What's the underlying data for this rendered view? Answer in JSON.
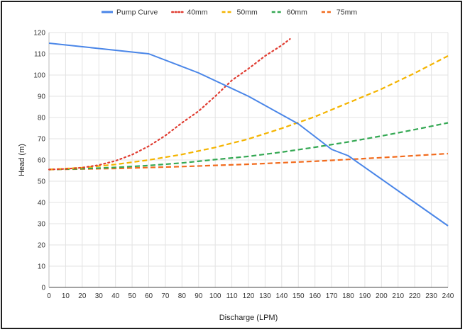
{
  "chart_data": {
    "type": "line",
    "title": "",
    "xlabel": "Discharge (LPM)",
    "ylabel": "Head (m)",
    "xlim": [
      0,
      240
    ],
    "ylim": [
      0,
      120
    ],
    "x_ticks": [
      0,
      10,
      20,
      30,
      40,
      50,
      60,
      70,
      80,
      90,
      100,
      110,
      120,
      130,
      140,
      150,
      160,
      170,
      180,
      190,
      200,
      210,
      220,
      230,
      240
    ],
    "y_ticks": [
      0,
      10,
      20,
      30,
      40,
      50,
      60,
      70,
      80,
      90,
      100,
      110,
      120
    ],
    "grid": true,
    "legend_position": "top",
    "series": [
      {
        "name": "Pump Curve",
        "color": "#4a86e8",
        "style": "solid",
        "points": [
          [
            0,
            115
          ],
          [
            30,
            112.5
          ],
          [
            60,
            110
          ],
          [
            90,
            101
          ],
          [
            120,
            90
          ],
          [
            150,
            77
          ],
          [
            170,
            65
          ],
          [
            180,
            62
          ],
          [
            200,
            51
          ],
          [
            220,
            40
          ],
          [
            240,
            29
          ]
        ]
      },
      {
        "name": "40mm",
        "color": "#e03c31",
        "style": "dotted",
        "points": [
          [
            0,
            55.5
          ],
          [
            10,
            55.8
          ],
          [
            20,
            56.4
          ],
          [
            30,
            57.6
          ],
          [
            40,
            59.6
          ],
          [
            50,
            62.5
          ],
          [
            60,
            66.5
          ],
          [
            70,
            71.5
          ],
          [
            80,
            77.5
          ],
          [
            90,
            83
          ],
          [
            100,
            90
          ],
          [
            110,
            97.5
          ],
          [
            120,
            103
          ],
          [
            130,
            109
          ],
          [
            140,
            114
          ],
          [
            145,
            117
          ]
        ]
      },
      {
        "name": "50mm",
        "color": "#f4b400",
        "style": "dashed",
        "points": [
          [
            0,
            55.5
          ],
          [
            20,
            56.4
          ],
          [
            40,
            57.9
          ],
          [
            60,
            60
          ],
          [
            80,
            62.6
          ],
          [
            100,
            65.9
          ],
          [
            120,
            69.9
          ],
          [
            140,
            74.9
          ],
          [
            160,
            80.4
          ],
          [
            180,
            86.9
          ],
          [
            200,
            93.4
          ],
          [
            220,
            100.9
          ],
          [
            240,
            109
          ]
        ]
      },
      {
        "name": "60mm",
        "color": "#34a853",
        "style": "dashed",
        "points": [
          [
            0,
            55.5
          ],
          [
            20,
            55.9
          ],
          [
            40,
            56.5
          ],
          [
            60,
            57.4
          ],
          [
            80,
            58.6
          ],
          [
            100,
            60.2
          ],
          [
            120,
            61.7
          ],
          [
            140,
            63.7
          ],
          [
            160,
            66
          ],
          [
            180,
            68.5
          ],
          [
            200,
            71.3
          ],
          [
            220,
            74.3
          ],
          [
            240,
            77.5
          ]
        ]
      },
      {
        "name": "75mm",
        "color": "#f26b1d",
        "style": "dashed",
        "points": [
          [
            0,
            55.5
          ],
          [
            40,
            56
          ],
          [
            80,
            56.9
          ],
          [
            120,
            58
          ],
          [
            160,
            59.4
          ],
          [
            200,
            61.1
          ],
          [
            240,
            63
          ]
        ]
      }
    ]
  }
}
